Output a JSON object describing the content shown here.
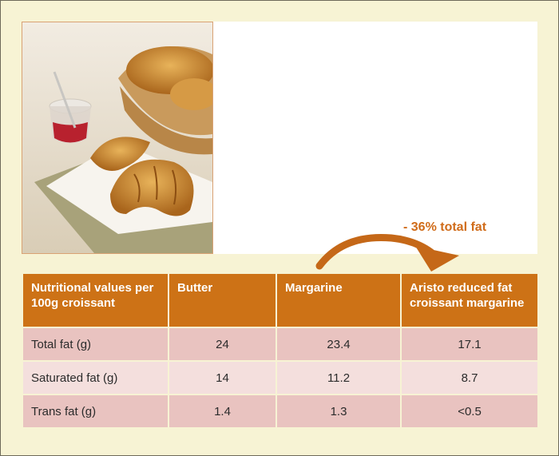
{
  "callout": {
    "text": "- 36% total fat"
  },
  "photo": {
    "subject": "croissants-with-jam-photo"
  },
  "table": {
    "headers": [
      "Nutritional values per 100g croissant",
      "Butter",
      "Margarine",
      "Aristo reduced fat croissant margarine"
    ],
    "rows": [
      {
        "label": "Total fat (g)",
        "values": [
          "24",
          "23.4",
          "17.1"
        ]
      },
      {
        "label": "Saturated fat (g)",
        "values": [
          "14",
          "11.2",
          "8.7"
        ]
      },
      {
        "label": "Trans fat (g)",
        "values": [
          "1.4",
          "1.3",
          "<0.5"
        ]
      }
    ]
  },
  "colors": {
    "background": "#f7f3d4",
    "header": "#cd7216",
    "row_dark": "#e9c3c0",
    "row_light": "#f4dfdd",
    "callout": "#d06c1a"
  }
}
